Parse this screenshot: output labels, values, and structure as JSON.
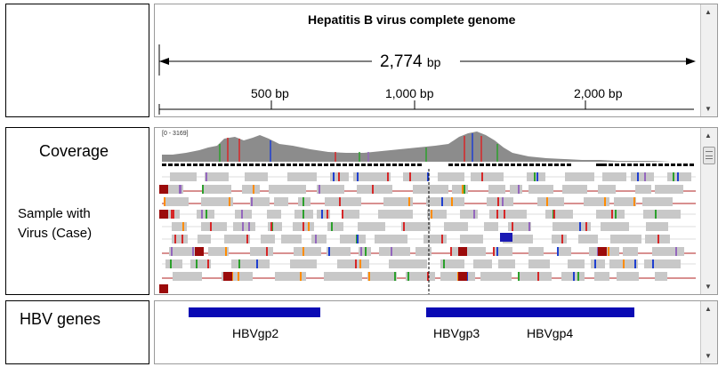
{
  "ruler": {
    "title": "Hepatitis B virus complete genome",
    "span_value": "2,774",
    "span_unit": "bp",
    "ticks": [
      "500 bp",
      "1,000 bp",
      "2,000 bp"
    ]
  },
  "coverage_track": {
    "label": "Coverage",
    "range": "[0 - 3169]"
  },
  "reads_track": {
    "label": "Sample with\nVirus (Case)"
  },
  "genes_track": {
    "label": "HBV genes",
    "genes": [
      "HBVgp2",
      "HBVgp3",
      "HBVgp4"
    ]
  },
  "colors": {
    "coverage_gray": "#8c8c8c",
    "read_gray": "#c8c8c8",
    "gene_blue": "#0a0ab4",
    "mate_line_red": "#b22222",
    "read_dark_red": "#9b0b0b"
  },
  "scroll_icons": [
    "scroll-up-icon",
    "scroll-down-icon"
  ]
}
